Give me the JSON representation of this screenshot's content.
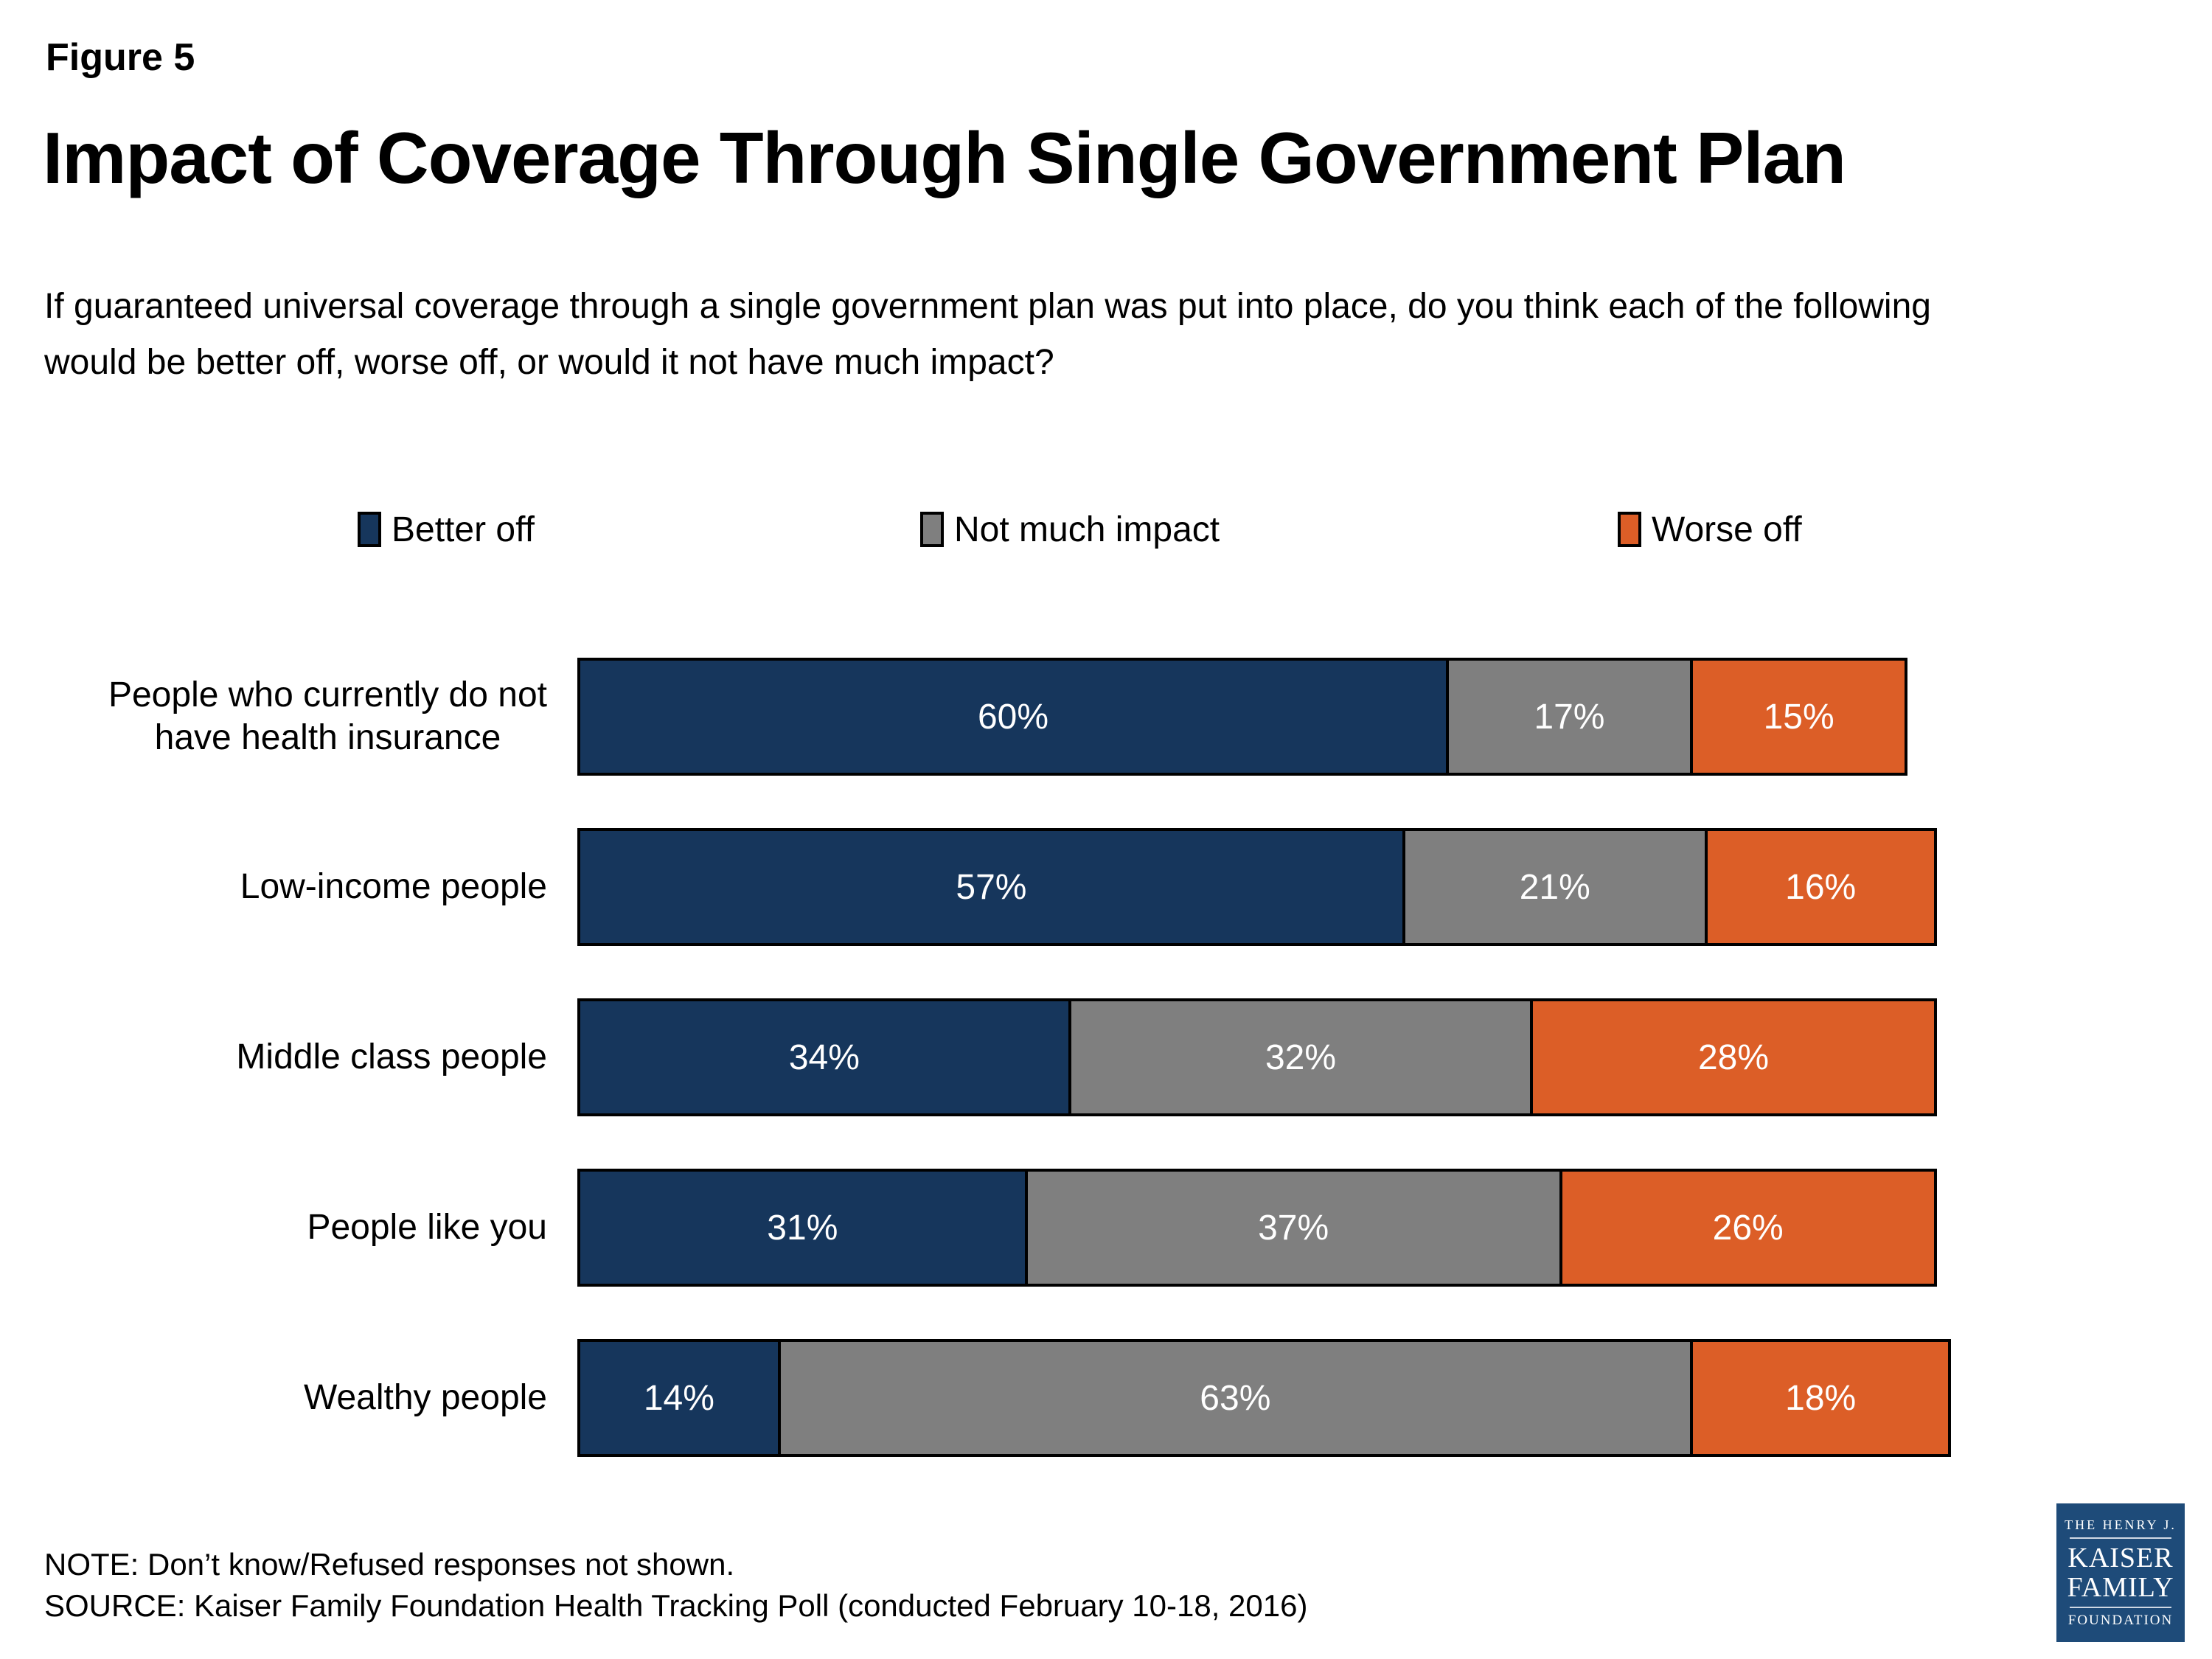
{
  "figure_label": "Figure 5",
  "title": "Impact of Coverage Through Single Government Plan",
  "subtitle_line1": "If guaranteed universal coverage through a single government plan was put into place, do you think each of the following",
  "subtitle_line2": "would be better off, worse off, or would it not have much impact?",
  "note": "NOTE: Don’t know/Refused responses not shown.",
  "source": "SOURCE: Kaiser Family Foundation Health Tracking Poll (conducted February 10-18, 2016)",
  "logo": {
    "line1": "THE HENRY J.",
    "line2": "KAISER",
    "line3": "FAMILY",
    "line4": "FOUNDATION",
    "background_color": "#1E4B79"
  },
  "chart_data": {
    "type": "bar",
    "stacked": true,
    "orientation": "horizontal",
    "value_format": "percent",
    "xlim": [
      0,
      100
    ],
    "grid": false,
    "legend_position": "top",
    "categories": [
      "People who currently do not have health insurance",
      "Low-income people",
      "Middle class people",
      "People like you",
      "Wealthy people"
    ],
    "categories_wrapped": [
      "People who currently do not\nhave health insurance",
      "Low-income people",
      "Middle class people",
      "People like you",
      "Wealthy people"
    ],
    "series": [
      {
        "name": "Better off",
        "color": "#16365C",
        "values": [
          60,
          57,
          34,
          31,
          14
        ]
      },
      {
        "name": "Not much impact",
        "color": "#7F7F7F",
        "values": [
          17,
          21,
          32,
          37,
          63
        ]
      },
      {
        "name": "Worse off",
        "color": "#DC5E27",
        "values": [
          15,
          16,
          28,
          26,
          18
        ]
      }
    ],
    "value_label_color": "#FFFFFF",
    "segment_border_color": "#000000"
  }
}
